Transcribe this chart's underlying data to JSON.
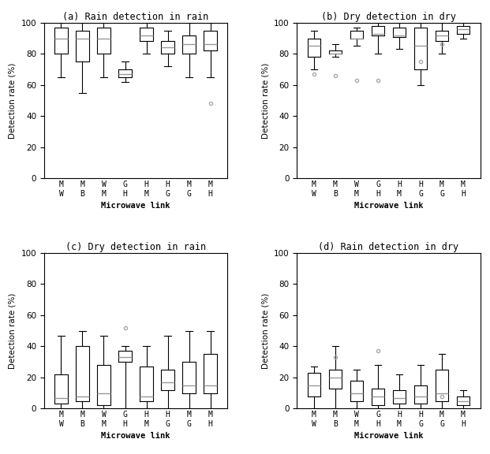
{
  "titles": [
    "(a) Rain detection in rain",
    "(b) Dry detection in dry",
    "(c) Dry detection in rain",
    "(d) Rain detection in dry"
  ],
  "xlabel": "Microwave link",
  "ylabel": "Detection rate (%)",
  "xtick_labels": [
    [
      "M",
      "W"
    ],
    [
      "M",
      "B"
    ],
    [
      "W",
      "M"
    ],
    [
      "G",
      "H"
    ],
    [
      "H",
      "M"
    ],
    [
      "H",
      "G"
    ],
    [
      "M",
      "G"
    ],
    [
      "M",
      "H"
    ]
  ],
  "ylim": [
    0,
    100
  ],
  "yticks": [
    0,
    20,
    40,
    60,
    80,
    100
  ],
  "box_data": {
    "a": {
      "whislo": [
        65,
        55,
        65,
        62,
        80,
        72,
        65,
        65
      ],
      "q1": [
        80,
        75,
        80,
        65,
        88,
        80,
        80,
        82
      ],
      "med": [
        90,
        90,
        90,
        67,
        92,
        84,
        86,
        86
      ],
      "q3": [
        97,
        95,
        97,
        70,
        97,
        88,
        92,
        95
      ],
      "whishi": [
        100,
        100,
        100,
        75,
        100,
        95,
        100,
        100
      ],
      "fliers": [
        [],
        [],
        [],
        [],
        [],
        [],
        [],
        [
          48
        ]
      ]
    },
    "b": {
      "whislo": [
        70,
        78,
        85,
        80,
        83,
        60,
        80,
        90
      ],
      "q1": [
        78,
        80,
        90,
        92,
        91,
        70,
        88,
        93
      ],
      "med": [
        85,
        80,
        90,
        93,
        92,
        85,
        92,
        96
      ],
      "q3": [
        90,
        82,
        95,
        98,
        97,
        97,
        95,
        98
      ],
      "whishi": [
        95,
        86,
        97,
        100,
        100,
        100,
        100,
        100
      ],
      "fliers": [
        [
          67
        ],
        [
          66
        ],
        [
          63
        ],
        [
          63
        ],
        [],
        [
          75
        ],
        [
          86
        ],
        []
      ]
    },
    "c": {
      "whislo": [
        0,
        0,
        0,
        0,
        0,
        0,
        0,
        0
      ],
      "q1": [
        3,
        5,
        2,
        30,
        5,
        12,
        10,
        10
      ],
      "med": [
        7,
        8,
        10,
        33,
        8,
        17,
        15,
        15
      ],
      "q3": [
        22,
        40,
        28,
        37,
        27,
        25,
        30,
        35
      ],
      "whishi": [
        47,
        50,
        47,
        40,
        40,
        47,
        50,
        50
      ],
      "fliers": [
        [],
        [],
        [],
        [
          52
        ],
        [],
        [],
        [],
        []
      ]
    },
    "d": {
      "whislo": [
        0,
        0,
        0,
        0,
        0,
        0,
        0,
        0
      ],
      "q1": [
        8,
        13,
        5,
        2,
        3,
        3,
        5,
        2
      ],
      "med": [
        15,
        20,
        10,
        8,
        7,
        8,
        10,
        5
      ],
      "q3": [
        23,
        25,
        18,
        13,
        12,
        15,
        25,
        8
      ],
      "whishi": [
        27,
        40,
        25,
        28,
        22,
        28,
        35,
        12
      ],
      "fliers": [
        [],
        [
          33
        ],
        [],
        [
          37
        ],
        [],
        [],
        [
          8
        ],
        []
      ]
    }
  }
}
